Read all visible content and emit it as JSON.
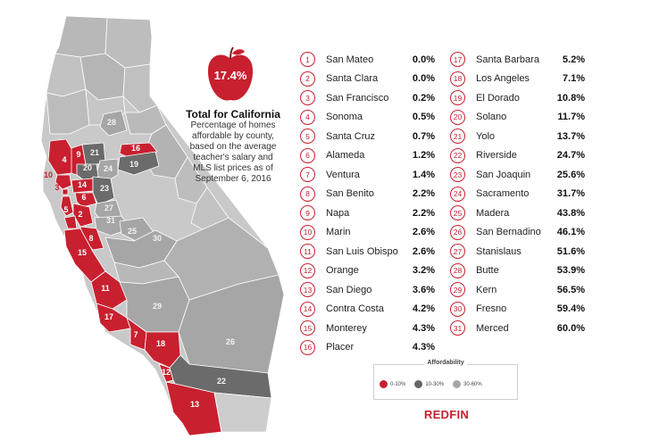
{
  "map": {
    "legend": {
      "title": "Affordability",
      "items": [
        {
          "label": "0-10%",
          "color": "#c8202f"
        },
        {
          "label": "10-30%",
          "color": "#666666"
        },
        {
          "label": "30-60%",
          "color": "#a6a6a6"
        }
      ]
    },
    "region_colors": {
      "red": "#c8202f",
      "dark": "#6b6b6b",
      "mid": "#a6a6a6",
      "light": "#c9c9c9",
      "outline": "#ffffff"
    },
    "map_labels": [
      "4",
      "9",
      "21",
      "16",
      "10",
      "3",
      "14",
      "20",
      "24",
      "19",
      "28",
      "6",
      "23",
      "5",
      "2",
      "27",
      "31",
      "8",
      "25",
      "30",
      "15",
      "11",
      "29",
      "17",
      "7",
      "18",
      "26",
      "12",
      "22",
      "13"
    ]
  },
  "summary": {
    "state_percent": "17.4%",
    "title": "Total for California",
    "description": "Percentage of homes affordable by county, based on the average teacher's salary and MLS list prices as of September 6, 2016"
  },
  "counties_left": [
    {
      "rank": "1",
      "name": "San Mateo",
      "pct": "0.0%"
    },
    {
      "rank": "2",
      "name": "Santa Clara",
      "pct": "0.0%"
    },
    {
      "rank": "3",
      "name": "San Francisco",
      "pct": "0.2%"
    },
    {
      "rank": "4",
      "name": "Sonoma",
      "pct": "0.5%"
    },
    {
      "rank": "5",
      "name": "Santa Cruz",
      "pct": "0.7%"
    },
    {
      "rank": "6",
      "name": "Alameda",
      "pct": "1.2%"
    },
    {
      "rank": "7",
      "name": "Ventura",
      "pct": "1.4%"
    },
    {
      "rank": "8",
      "name": "San Benito",
      "pct": "2.2%"
    },
    {
      "rank": "9",
      "name": "Napa",
      "pct": "2.2%"
    },
    {
      "rank": "10",
      "name": "Marin",
      "pct": "2.6%"
    },
    {
      "rank": "11",
      "name": "San Luis Obispo",
      "pct": "2.6%"
    },
    {
      "rank": "12",
      "name": "Orange",
      "pct": "3.2%"
    },
    {
      "rank": "13",
      "name": "San Diego",
      "pct": "3.6%"
    },
    {
      "rank": "14",
      "name": "Contra Costa",
      "pct": "4.2%"
    },
    {
      "rank": "15",
      "name": "Monterey",
      "pct": "4.3%"
    },
    {
      "rank": "16",
      "name": "Placer",
      "pct": "4.3%"
    }
  ],
  "counties_right": [
    {
      "rank": "17",
      "name": "Santa Barbara",
      "pct": "5.2%"
    },
    {
      "rank": "18",
      "name": "Los Angeles",
      "pct": "7.1%"
    },
    {
      "rank": "19",
      "name": "El Dorado",
      "pct": "10.8%"
    },
    {
      "rank": "20",
      "name": "Solano",
      "pct": "11.7%"
    },
    {
      "rank": "21",
      "name": "Yolo",
      "pct": "13.7%"
    },
    {
      "rank": "22",
      "name": "Riverside",
      "pct": "24.7%"
    },
    {
      "rank": "23",
      "name": "San Joaquin",
      "pct": "25.6%"
    },
    {
      "rank": "24",
      "name": "Sacramento",
      "pct": "31.7%"
    },
    {
      "rank": "25",
      "name": "Madera",
      "pct": "43.8%"
    },
    {
      "rank": "26",
      "name": "San Bernadino",
      "pct": "46.1%"
    },
    {
      "rank": "27",
      "name": "Stanislaus",
      "pct": "51.6%"
    },
    {
      "rank": "28",
      "name": "Butte",
      "pct": "53.9%"
    },
    {
      "rank": "29",
      "name": "Kern",
      "pct": "56.5%"
    },
    {
      "rank": "30",
      "name": "Fresno",
      "pct": "59.4%"
    },
    {
      "rank": "31",
      "name": "Merced",
      "pct": "60.0%"
    }
  ],
  "brand": "REDFIN"
}
